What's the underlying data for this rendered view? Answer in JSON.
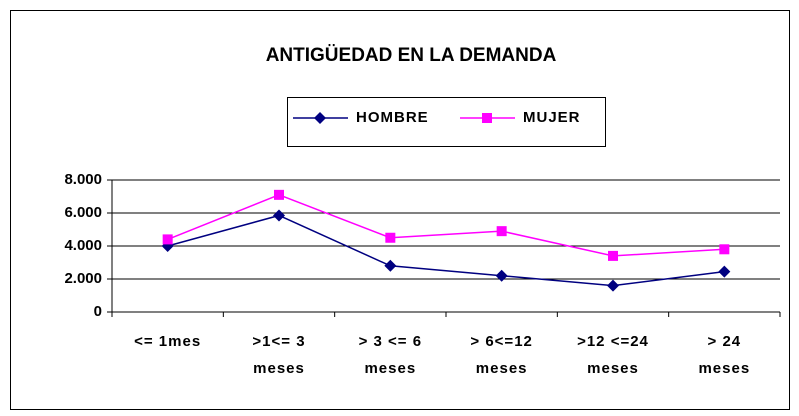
{
  "chart_data": {
    "type": "line",
    "title": "ANTIGÜEDAD EN LA DEMANDA",
    "categories": [
      "<= 1mes",
      ">1<= 3\nmeses",
      "> 3 <= 6\nmeses",
      "> 6<=12\nmeses",
      ">12 <=24\nmeses",
      "> 24\nmeses"
    ],
    "series": [
      {
        "name": "HOMBRE",
        "color": "#000080",
        "marker": "diamond",
        "values": [
          4000,
          5850,
          2800,
          2200,
          1600,
          2450
        ]
      },
      {
        "name": "MUJER",
        "color": "#ff00ff",
        "marker": "square",
        "values": [
          4400,
          7100,
          4500,
          4900,
          3400,
          3800
        ]
      }
    ],
    "ylim": [
      0,
      8000
    ],
    "yticks": [
      {
        "value": 0,
        "label": "0"
      },
      {
        "value": 2000,
        "label": "2.000"
      },
      {
        "value": 4000,
        "label": "4.000"
      },
      {
        "value": 6000,
        "label": "6.000"
      },
      {
        "value": 8000,
        "label": "8.000"
      }
    ],
    "grid": true,
    "legend": "top"
  }
}
